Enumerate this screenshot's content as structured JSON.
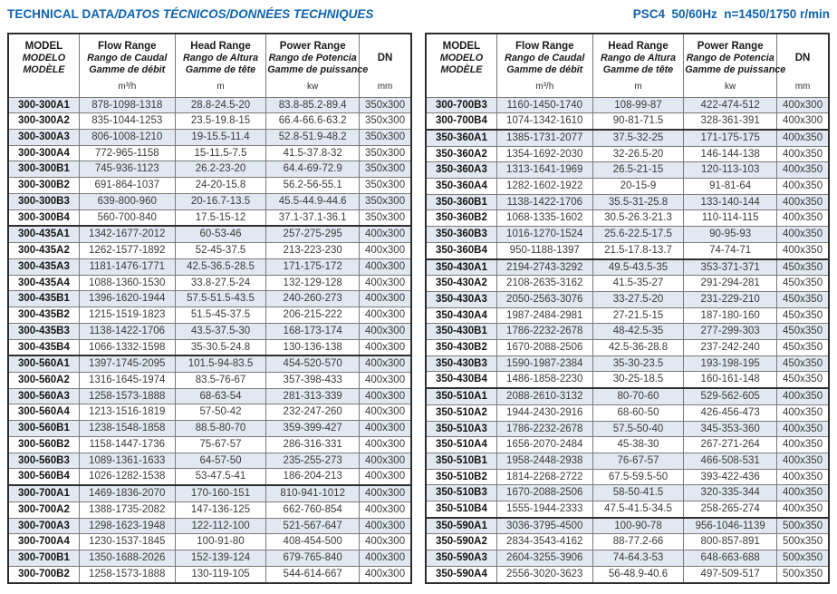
{
  "colors": {
    "accent": "#0e62ad",
    "stripe": "#e2e8f1",
    "border_dark": "#2e2e2e",
    "border_light": "#7a7a7a"
  },
  "header": {
    "title_main": "TECHNICAL DATA",
    "title_secondary": "/DATOS TÉCNICOS/DONNÉES TECHNIQUES",
    "spec": "PSC4  50/60Hz  n=1450/1750 r/min"
  },
  "column_headers": {
    "model_lines": [
      "MODEL",
      "MODELO",
      "MODÈLE"
    ],
    "flow_lines": [
      "Flow Range",
      "Rango de Caudal",
      "Gamme de débit"
    ],
    "head_lines": [
      "Head Range",
      "Rango de Altura",
      "Gamme de tête"
    ],
    "power_lines": [
      "Power Range",
      "Rango de Potencia",
      "Gamme de puissance"
    ],
    "dn_label": "DN",
    "units": {
      "flow": "m³/h",
      "head": "m",
      "power": "kw",
      "dn": "mm"
    }
  },
  "tables": {
    "left": {
      "rows": [
        [
          "300-300A1",
          "878-1098-1318",
          "28.8-24.5-20",
          "83.8-85.2-89.4",
          "350x300"
        ],
        [
          "300-300A2",
          "835-1044-1253",
          "23.5-19.8-15",
          "66.4-66.6-63.2",
          "350x300"
        ],
        [
          "300-300A3",
          "806-1008-1210",
          "19-15.5-11.4",
          "52.8-51.9-48.2",
          "350x300"
        ],
        [
          "300-300A4",
          "772-965-1158",
          "15-11.5-7.5",
          "41.5-37.8-32",
          "350x300"
        ],
        [
          "300-300B1",
          "745-936-1123",
          "26.2-23-20",
          "64.4-69-72.9",
          "350x300"
        ],
        [
          "300-300B2",
          "691-864-1037",
          "24-20-15.8",
          "56.2-56-55.1",
          "350x300"
        ],
        [
          "300-300B3",
          "639-800-960",
          "20-16.7-13.5",
          "45.5-44.9-44.6",
          "350x300"
        ],
        [
          "300-300B4",
          "560-700-840",
          "17.5-15-12",
          "37.1-37.1-36.1",
          "350x300"
        ],
        [
          "300-435A1",
          "1342-1677-2012",
          "60-53-46",
          "257-275-295",
          "400x300"
        ],
        [
          "300-435A2",
          "1262-1577-1892",
          "52-45-37.5",
          "213-223-230",
          "400x300"
        ],
        [
          "300-435A3",
          "1181-1476-1771",
          "42.5-36.5-28.5",
          "171-175-172",
          "400x300"
        ],
        [
          "300-435A4",
          "1088-1360-1530",
          "33.8-27.5-24",
          "132-129-128",
          "400x300"
        ],
        [
          "300-435B1",
          "1396-1620-1944",
          "57.5-51.5-43.5",
          "240-260-273",
          "400x300"
        ],
        [
          "300-435B2",
          "1215-1519-1823",
          "51.5-45-37.5",
          "206-215-222",
          "400x300"
        ],
        [
          "300-435B3",
          "1138-1422-1706",
          "43.5-37.5-30",
          "168-173-174",
          "400x300"
        ],
        [
          "300-435B4",
          "1066-1332-1598",
          "35-30.5-24.8",
          "130-136-138",
          "400x300"
        ],
        [
          "300-560A1",
          "1397-1745-2095",
          "101.5-94-83.5",
          "454-520-570",
          "400x300"
        ],
        [
          "300-560A2",
          "1316-1645-1974",
          "83.5-76-67",
          "357-398-433",
          "400x300"
        ],
        [
          "300-560A3",
          "1258-1573-1888",
          "68-63-54",
          "281-313-339",
          "400x300"
        ],
        [
          "300-560A4",
          "1213-1516-1819",
          "57-50-42",
          "232-247-260",
          "400x300"
        ],
        [
          "300-560B1",
          "1238-1548-1858",
          "88.5-80-70",
          "359-399-427",
          "400x300"
        ],
        [
          "300-560B2",
          "1158-1447-1736",
          "75-67-57",
          "286-316-331",
          "400x300"
        ],
        [
          "300-560B3",
          "1089-1361-1633",
          "64-57-50",
          "235-255-273",
          "400x300"
        ],
        [
          "300-560B4",
          "1026-1282-1538",
          "53-47.5-41",
          "186-204-213",
          "400x300"
        ],
        [
          "300-700A1",
          "1469-1836-2070",
          "170-160-151",
          "810-941-1012",
          "400x300"
        ],
        [
          "300-700A2",
          "1388-1735-2082",
          "147-136-125",
          "662-760-854",
          "400x300"
        ],
        [
          "300-700A3",
          "1298-1623-1948",
          "122-112-100",
          "521-567-647",
          "400x300"
        ],
        [
          "300-700A4",
          "1230-1537-1845",
          "100-91-80",
          "408-454-500",
          "400x300"
        ],
        [
          "300-700B1",
          "1350-1688-2026",
          "152-139-124",
          "679-765-840",
          "400x300"
        ],
        [
          "300-700B2",
          "1258-1573-1888",
          "130-119-105",
          "544-614-667",
          "400x300"
        ]
      ]
    },
    "right": {
      "rows": [
        [
          "300-700B3",
          "1160-1450-1740",
          "108-99-87",
          "422-474-512",
          "400x300"
        ],
        [
          "300-700B4",
          "1074-1342-1610",
          "90-81-71.5",
          "328-361-391",
          "400x300"
        ],
        [
          "350-360A1",
          "1385-1731-2077",
          "37.5-32-25",
          "171-175-175",
          "400x350"
        ],
        [
          "350-360A2",
          "1354-1692-2030",
          "32-26.5-20",
          "146-144-138",
          "400x350"
        ],
        [
          "350-360A3",
          "1313-1641-1969",
          "26.5-21-15",
          "120-113-103",
          "400x350"
        ],
        [
          "350-360A4",
          "1282-1602-1922",
          "20-15-9",
          "91-81-64",
          "400x350"
        ],
        [
          "350-360B1",
          "1138-1422-1706",
          "35.5-31-25.8",
          "133-140-144",
          "400x350"
        ],
        [
          "350-360B2",
          "1068-1335-1602",
          "30.5-26.3-21.3",
          "110-114-115",
          "400x350"
        ],
        [
          "350-360B3",
          "1016-1270-1524",
          "25.6-22.5-17.5",
          "90-95-93",
          "400x350"
        ],
        [
          "350-360B4",
          "950-1188-1397",
          "21.5-17.8-13.7",
          "74-74-71",
          "400x350"
        ],
        [
          "350-430A1",
          "2194-2743-3292",
          "49.5-43.5-35",
          "353-371-371",
          "450x350"
        ],
        [
          "350-430A2",
          "2108-2635-3162",
          "41.5-35-27",
          "291-294-281",
          "450x350"
        ],
        [
          "350-430A3",
          "2050-2563-3076",
          "33-27.5-20",
          "231-229-210",
          "450x350"
        ],
        [
          "350-430A4",
          "1987-2484-2981",
          "27-21.5-15",
          "187-180-160",
          "450x350"
        ],
        [
          "350-430B1",
          "1786-2232-2678",
          "48-42.5-35",
          "277-299-303",
          "450x350"
        ],
        [
          "350-430B2",
          "1670-2088-2506",
          "42.5-36-28.8",
          "237-242-240",
          "450x350"
        ],
        [
          "350-430B3",
          "1590-1987-2384",
          "35-30-23.5",
          "193-198-195",
          "450x350"
        ],
        [
          "350-430B4",
          "1486-1858-2230",
          "30-25-18.5",
          "160-161-148",
          "450x350"
        ],
        [
          "350-510A1",
          "2088-2610-3132",
          "80-70-60",
          "529-562-605",
          "400x350"
        ],
        [
          "350-510A2",
          "1944-2430-2916",
          "68-60-50",
          "426-456-473",
          "400x350"
        ],
        [
          "350-510A3",
          "1786-2232-2678",
          "57.5-50-40",
          "345-353-360",
          "400x350"
        ],
        [
          "350-510A4",
          "1656-2070-2484",
          "45-38-30",
          "267-271-264",
          "400x350"
        ],
        [
          "350-510B1",
          "1958-2448-2938",
          "76-67-57",
          "466-508-531",
          "400x350"
        ],
        [
          "350-510B2",
          "1814-2268-2722",
          "67.5-59.5-50",
          "393-422-436",
          "400x350"
        ],
        [
          "350-510B3",
          "1670-2088-2506",
          "58-50-41.5",
          "320-335-344",
          "400x350"
        ],
        [
          "350-510B4",
          "1555-1944-2333",
          "47.5-41.5-34.5",
          "258-265-274",
          "400x350"
        ],
        [
          "350-590A1",
          "3036-3795-4500",
          "100-90-78",
          "956-1046-1139",
          "500x350"
        ],
        [
          "350-590A2",
          "2834-3543-4162",
          "88-77.2-66",
          "800-857-891",
          "500x350"
        ],
        [
          "350-590A3",
          "2604-3255-3906",
          "74-64.3-53",
          "648-663-688",
          "500x350"
        ],
        [
          "350-590A4",
          "2556-3020-3623",
          "56-48.9-40.6",
          "497-509-517",
          "500x350"
        ]
      ]
    }
  }
}
